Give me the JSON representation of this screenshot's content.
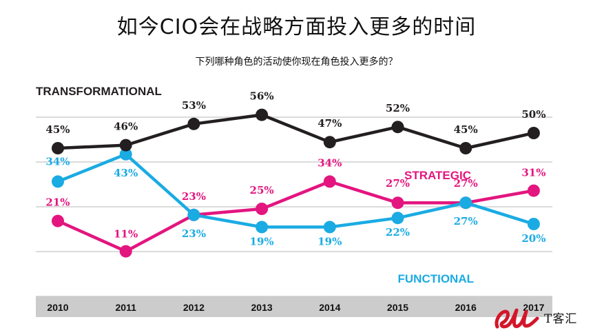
{
  "title": "如今CIO会在战略方面投入更多的时间",
  "subtitle": "下列哪种角色的活动使你现在角色投入更多的？",
  "watermark": "T客汇",
  "colors": {
    "transformational": "#231f20",
    "strategic": "#e3157f",
    "functional": "#1aabe3",
    "gridline": "#cfcfcf",
    "axis_band": "#cccccc"
  },
  "chart_data": {
    "type": "line",
    "x": [
      "2010",
      "2011",
      "2012",
      "2013",
      "2014",
      "2015",
      "2016",
      "2017"
    ],
    "y_unit": "%",
    "grid": true,
    "series": [
      {
        "name": "TRANSFORMATIONAL",
        "key": "transformational",
        "values": [
          45,
          46,
          53,
          56,
          47,
          52,
          45,
          50
        ]
      },
      {
        "name": "STRATEGIC",
        "key": "strategic",
        "values": [
          21,
          11,
          23,
          25,
          34,
          27,
          27,
          31
        ]
      },
      {
        "name": "FUNCTIONAL",
        "key": "functional",
        "values": [
          34,
          43,
          23,
          19,
          19,
          22,
          27,
          20
        ]
      }
    ]
  }
}
